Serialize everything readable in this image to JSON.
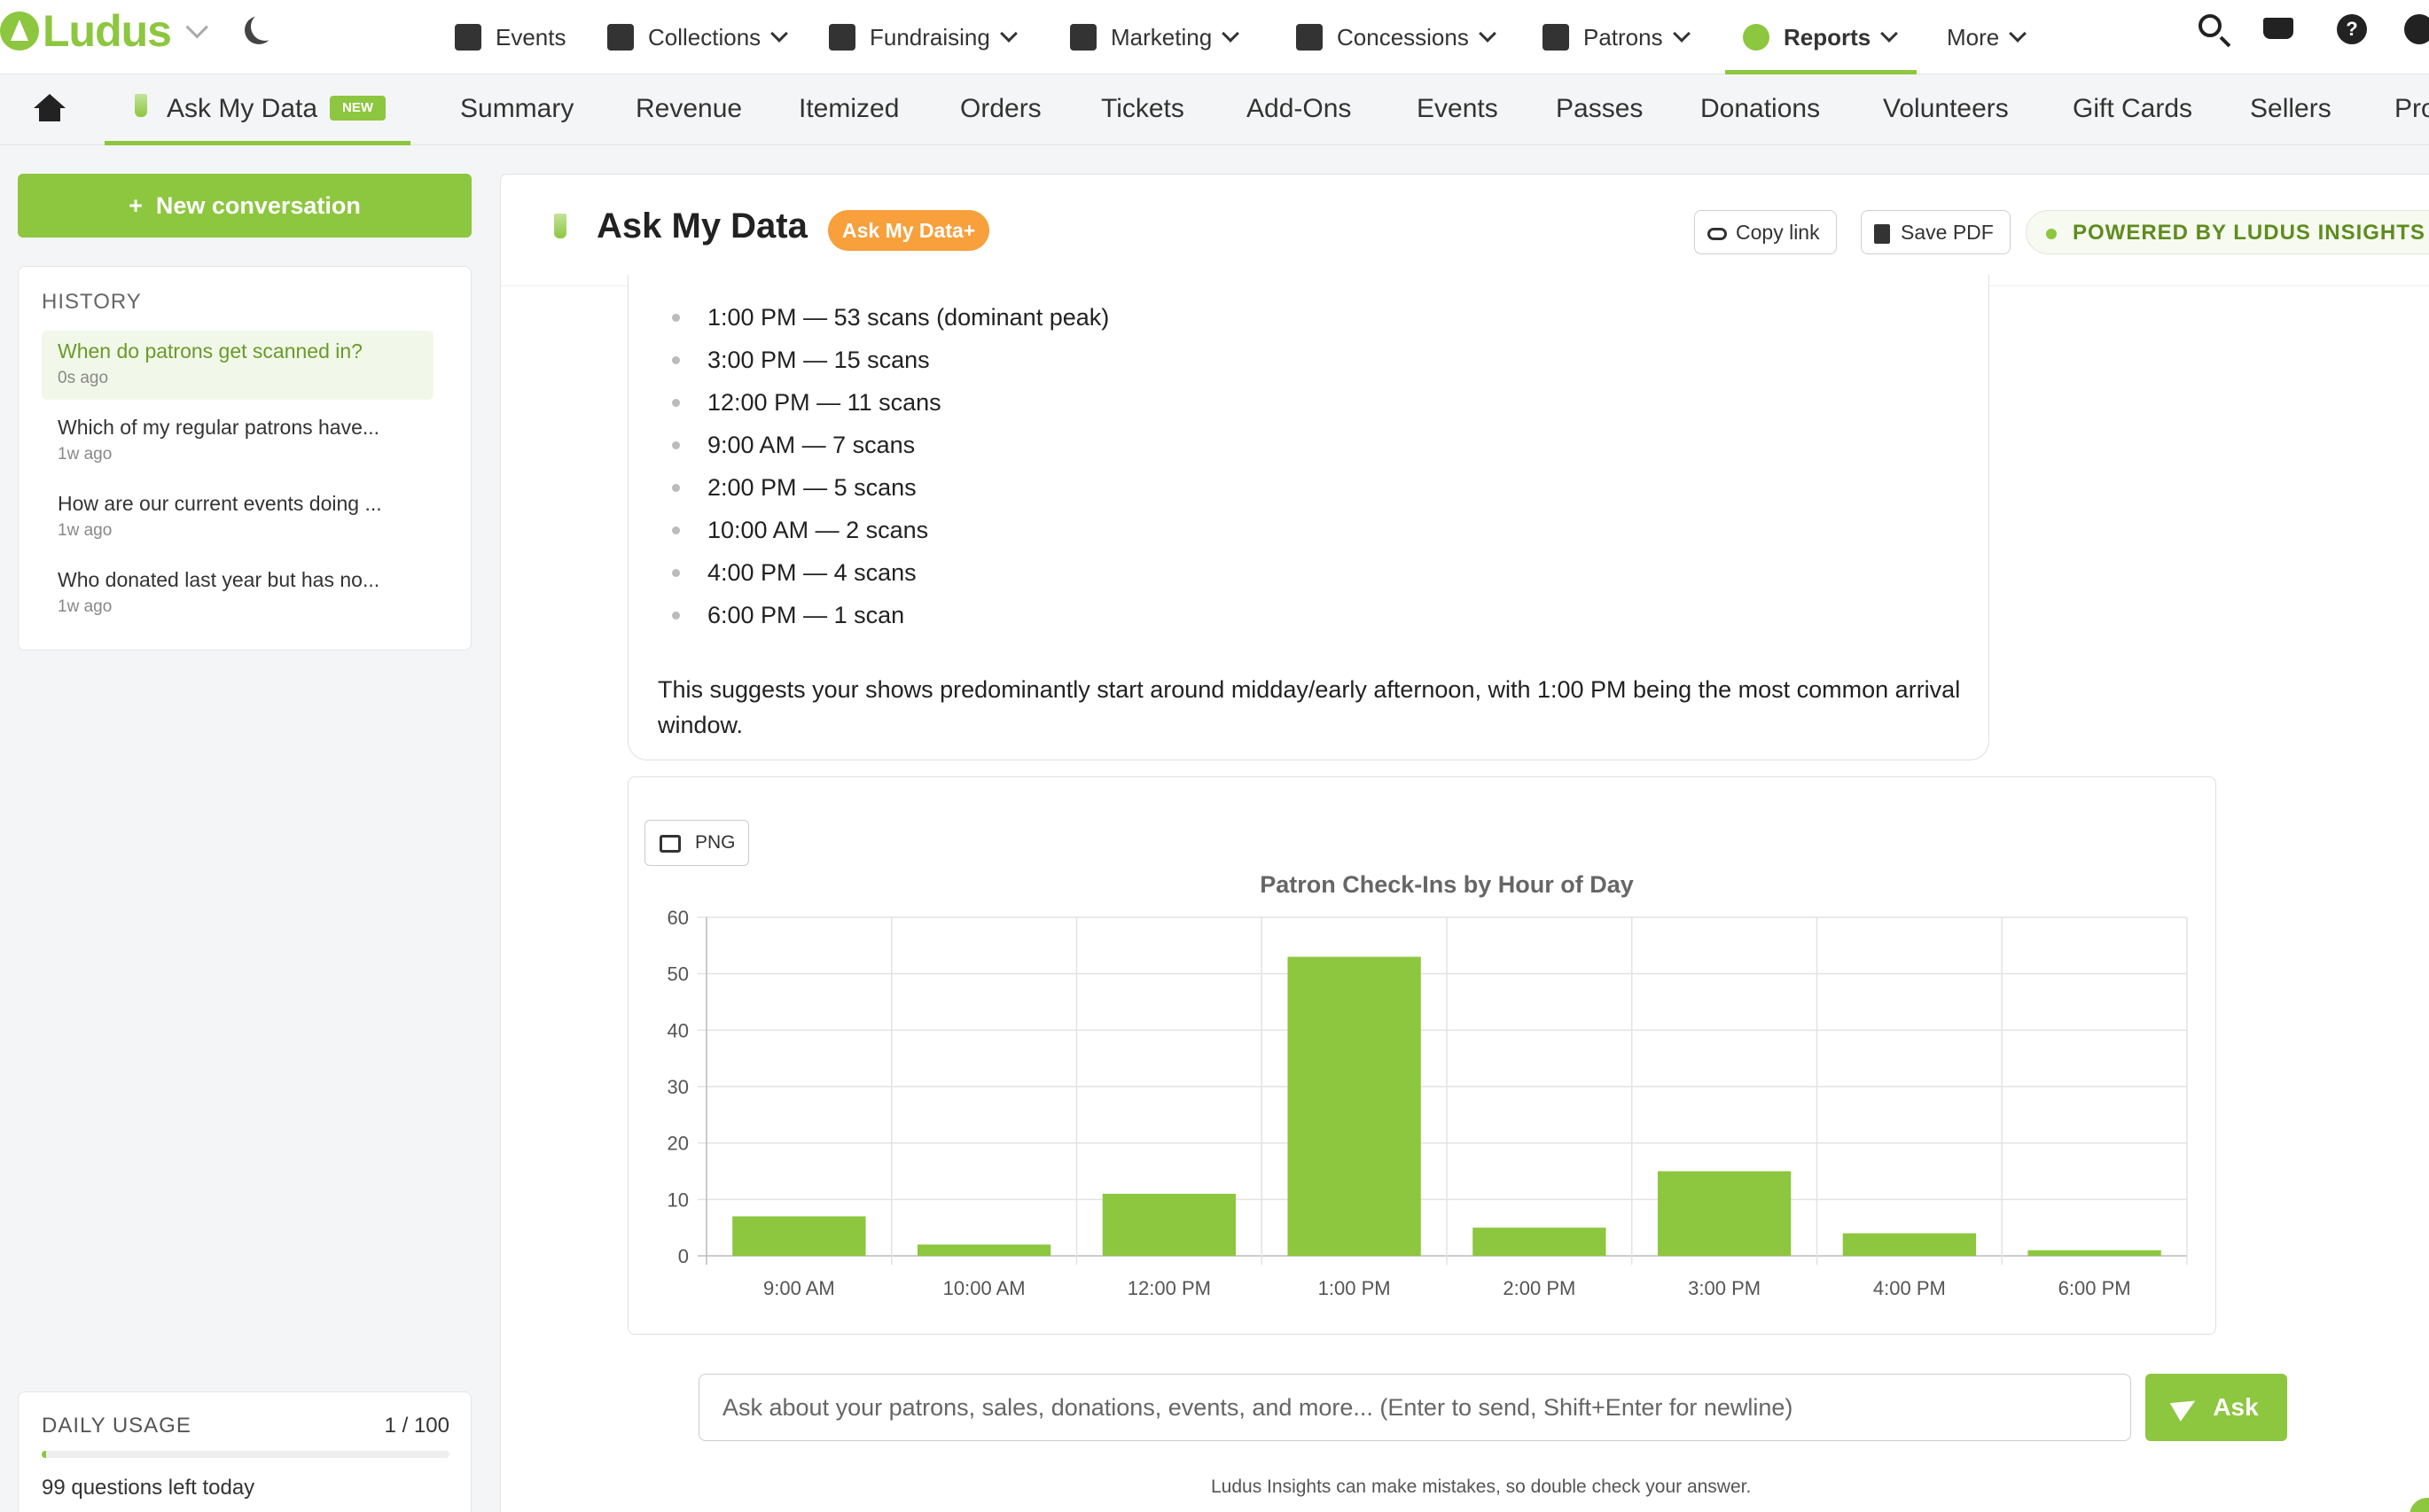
{
  "brand": {
    "name": "Ludus",
    "accent": "#8dc63f",
    "orange": "#f7a03c"
  },
  "topnav": {
    "items": [
      {
        "label": "Events",
        "icon": "calendar-icon"
      },
      {
        "label": "Collections",
        "icon": "dollar-doc-icon"
      },
      {
        "label": "Fundraising",
        "icon": "hand-dollar-icon"
      },
      {
        "label": "Marketing",
        "icon": "mail-bullhorn-icon"
      },
      {
        "label": "Concessions",
        "icon": "store-icon"
      },
      {
        "label": "Patrons",
        "icon": "users-icon"
      },
      {
        "label": "Reports",
        "icon": "pie-chart-icon"
      },
      {
        "label": "More",
        "icon": ""
      }
    ]
  },
  "subnav": {
    "tabs": [
      "Ask My Data",
      "Summary",
      "Revenue",
      "Itemized",
      "Orders",
      "Tickets",
      "Add-Ons",
      "Events",
      "Passes",
      "Donations",
      "Volunteers",
      "Gift Cards",
      "Sellers",
      "Pro"
    ],
    "new_badge": "NEW"
  },
  "sidebar": {
    "new_conversation": "New conversation",
    "history_title": "HISTORY",
    "history": [
      {
        "q": "When do patrons get scanned in?",
        "t": "0s ago"
      },
      {
        "q": "Which of my regular patrons have...",
        "t": "1w ago"
      },
      {
        "q": "How are our current events doing ...",
        "t": "1w ago"
      },
      {
        "q": "Who donated last year but has no...",
        "t": "1w ago"
      }
    ],
    "usage": {
      "title": "DAILY USAGE",
      "count": "1 / 100",
      "fraction": 0.01,
      "left": "99 questions left today"
    }
  },
  "main": {
    "title": "Ask My Data",
    "plus_badge": "Ask My Data+",
    "copy_link": "Copy link",
    "save_pdf": "Save PDF",
    "powered": "POWERED BY LUDUS INSIGHTS",
    "scans": [
      {
        "time": "1:00 PM",
        "text": " — 53 scans (dominant peak)"
      },
      {
        "time": "3:00 PM",
        "text": " — 15 scans"
      },
      {
        "time": "12:00 PM",
        "text": " — 11 scans"
      },
      {
        "time": "9:00 AM",
        "text": " — 7 scans"
      },
      {
        "time": "2:00 PM",
        "text": " — 5 scans"
      },
      {
        "time": "10:00 AM",
        "text": " — 2 scans"
      },
      {
        "time": "4:00 PM",
        "text": " — 4 scans"
      },
      {
        "time": "6:00 PM",
        "text": " — 1 scan"
      }
    ],
    "summary": "This suggests your shows predominantly start around midday/early afternoon, with 1:00 PM being the most common arrival window.",
    "png_button": "PNG",
    "input_placeholder": "Ask about your patrons, sales, donations, events, and more... (Enter to send, Shift+Enter for newline)",
    "ask_button": "Ask",
    "disclaimer": "Ludus Insights can make mistakes, so double check your answer."
  },
  "chart_data": {
    "type": "bar",
    "title": "Patron Check-Ins by Hour of Day",
    "categories": [
      "9:00 AM",
      "10:00 AM",
      "12:00 PM",
      "1:00 PM",
      "2:00 PM",
      "3:00 PM",
      "4:00 PM",
      "6:00 PM"
    ],
    "values": [
      7,
      2,
      11,
      53,
      5,
      15,
      4,
      1
    ],
    "ylim": [
      0,
      60
    ],
    "yticks": [
      0,
      10,
      20,
      30,
      40,
      50,
      60
    ],
    "color": "#8dc63f",
    "grid": true
  }
}
